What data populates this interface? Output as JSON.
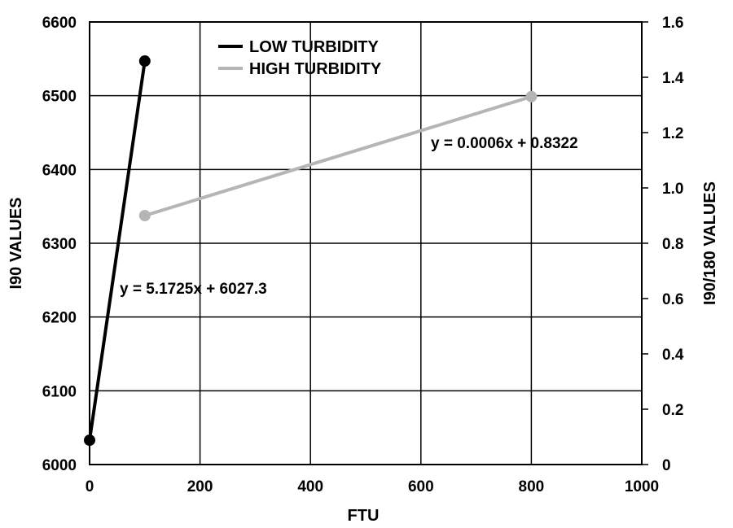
{
  "chart_data": {
    "type": "line",
    "xlabel": "FTU",
    "ylabel_left": "I90 VALUES",
    "ylabel_right": "I90/180 VALUES",
    "xlim": [
      0,
      1000
    ],
    "ylim_left": [
      6000,
      6600
    ],
    "ylim_right": [
      0,
      1.6
    ],
    "x_ticks": [
      "0",
      "200",
      "400",
      "600",
      "800",
      "1000"
    ],
    "y_left_ticks": [
      "6000",
      "6100",
      "6200",
      "6300",
      "6400",
      "6500",
      "6600"
    ],
    "y_right_ticks": [
      "0",
      "0.2",
      "0.4",
      "0.6",
      "0.8",
      "1.0",
      "1.2",
      "1.4",
      "1.6"
    ],
    "grid": true,
    "legend_position": "top-center",
    "series": [
      {
        "name": "LOW TURBIDITY",
        "axis": "left",
        "color": "#000000",
        "points": [
          {
            "x": 0,
            "y": 6033
          },
          {
            "x": 100,
            "y": 6547
          }
        ],
        "annotation": "y = 5.1725x + 6027.3"
      },
      {
        "name": "HIGH TURBIDITY",
        "axis": "right",
        "color": "#b5b5b5",
        "points": [
          {
            "x": 100,
            "y": 0.9
          },
          {
            "x": 800,
            "y": 1.33
          }
        ],
        "annotation": "y = 0.0006x + 0.8322"
      }
    ]
  }
}
